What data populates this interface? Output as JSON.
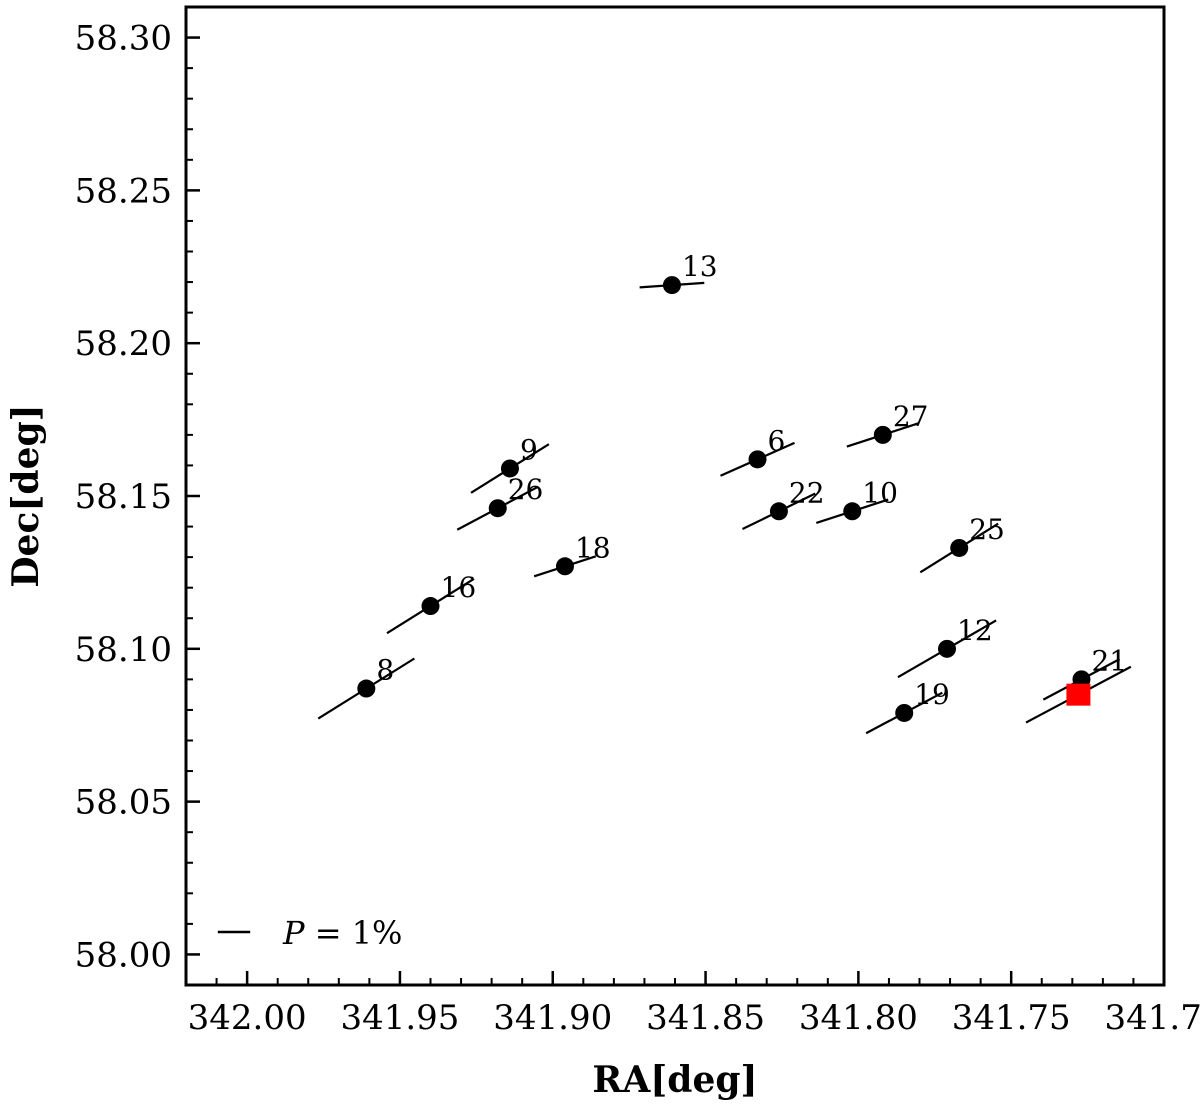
{
  "chart_data": {
    "type": "scatter",
    "xlabel": "RA[deg]",
    "ylabel": "Dec[deg]",
    "xlim": [
      342.02,
      341.7
    ],
    "ylim": [
      57.99,
      58.31
    ],
    "x_inverted": true,
    "x_ticks": [
      342.0,
      341.95,
      341.9,
      341.85,
      341.8,
      341.75,
      341.7
    ],
    "x_tick_labels": [
      "342.00",
      "341.95",
      "341.90",
      "341.85",
      "341.80",
      "341.75",
      "341.70"
    ],
    "y_ticks": [
      58.0,
      58.05,
      58.1,
      58.15,
      58.2,
      58.25,
      58.3
    ],
    "y_tick_labels": [
      "58.00",
      "58.05",
      "58.10",
      "58.15",
      "58.20",
      "58.25",
      "58.30"
    ],
    "grid": false,
    "legend": {
      "placement": "bottom-left",
      "symbol": "polarization-vector",
      "label_prefix": "P",
      "label_suffix": " = 1%",
      "p_percent": 1
    },
    "series": [
      {
        "marker": "circle",
        "color": "#000000",
        "points": [
          {
            "id": "8",
            "ra": 341.961,
            "dec": 58.087,
            "p": 2.1,
            "pa": 122
          },
          {
            "id": "16",
            "ra": 341.94,
            "dec": 58.114,
            "p": 1.9,
            "pa": 122
          },
          {
            "id": "26",
            "ra": 341.918,
            "dec": 58.146,
            "p": 1.7,
            "pa": 118
          },
          {
            "id": "9",
            "ra": 341.914,
            "dec": 58.159,
            "p": 1.7,
            "pa": 122
          },
          {
            "id": "18",
            "ra": 341.896,
            "dec": 58.127,
            "p": 1.2,
            "pa": 108
          },
          {
            "id": "13",
            "ra": 341.861,
            "dec": 58.219,
            "p": 1.2,
            "pa": 94
          },
          {
            "id": "6",
            "ra": 341.833,
            "dec": 58.162,
            "p": 1.5,
            "pa": 114
          },
          {
            "id": "22",
            "ra": 341.826,
            "dec": 58.145,
            "p": 1.5,
            "pa": 116
          },
          {
            "id": "10",
            "ra": 341.802,
            "dec": 58.145,
            "p": 1.4,
            "pa": 108
          },
          {
            "id": "27",
            "ra": 341.792,
            "dec": 58.17,
            "p": 1.4,
            "pa": 108
          },
          {
            "id": "19",
            "ra": 341.785,
            "dec": 58.079,
            "p": 1.6,
            "pa": 118
          },
          {
            "id": "12",
            "ra": 341.771,
            "dec": 58.1,
            "p": 2.1,
            "pa": 120
          },
          {
            "id": "25",
            "ra": 341.767,
            "dec": 58.133,
            "p": 1.7,
            "pa": 122
          },
          {
            "id": "21",
            "ra": 341.727,
            "dec": 58.09,
            "p": 1.6,
            "pa": 118
          }
        ]
      },
      {
        "marker": "square",
        "color": "#ff0000",
        "points": [
          {
            "id": "",
            "ra": 341.728,
            "dec": 58.085,
            "p": 2.2,
            "pa": 118
          }
        ]
      }
    ]
  }
}
